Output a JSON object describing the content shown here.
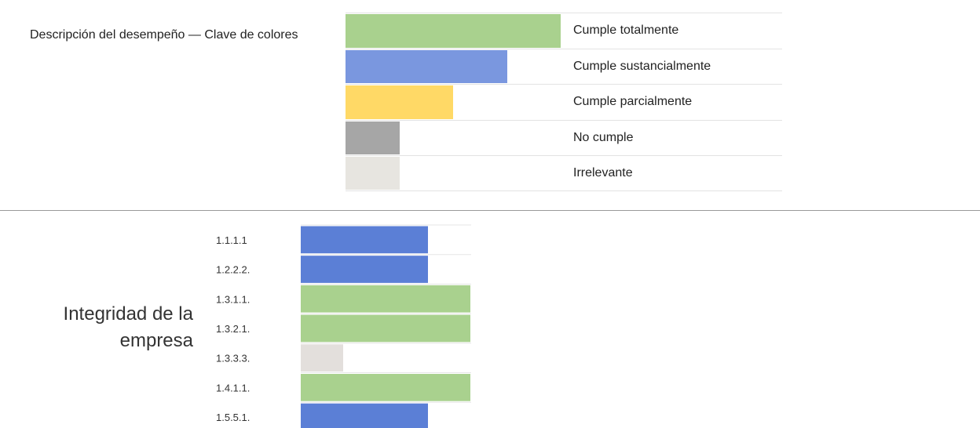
{
  "legend": {
    "title": "Descripción del desempeño — Clave de colores",
    "items": [
      {
        "label": "Cumple totalmente",
        "color": "#a9d18e",
        "level": 4
      },
      {
        "label": "Cumple sustancialmente",
        "color": "#7a97df",
        "level": 3
      },
      {
        "label": "Cumple parcialmente",
        "color": "#ffd966",
        "level": 2
      },
      {
        "label": "No cumple",
        "color": "#a6a6a6",
        "level": 1
      },
      {
        "label": "Irrelevante",
        "color": "#e7e5e0",
        "level": 1
      }
    ]
  },
  "chart_data": {
    "type": "bar",
    "orientation": "horizontal",
    "group_label": "Integridad de la empresa",
    "categories": [
      "1.1.1.1",
      "1.2.2.2.",
      "1.3.1.1.",
      "1.3.2.1.",
      "1.3.3.3.",
      "1.4.1.1.",
      "1.5.5.1."
    ],
    "values": [
      3,
      3,
      4,
      4,
      1,
      4,
      3
    ],
    "status": [
      "Cumple sustancialmente",
      "Cumple sustancialmente",
      "Cumple totalmente",
      "Cumple totalmente",
      "Irrelevante",
      "Cumple totalmente",
      "Cumple sustancialmente"
    ],
    "colors": [
      "#5b7fd6",
      "#5b7fd6",
      "#a9d18e",
      "#a9d18e",
      "#e3dfdc",
      "#a9d18e",
      "#5b7fd6"
    ],
    "xlim": [
      0,
      4
    ],
    "xlabel": "",
    "ylabel": "",
    "grid": true
  }
}
